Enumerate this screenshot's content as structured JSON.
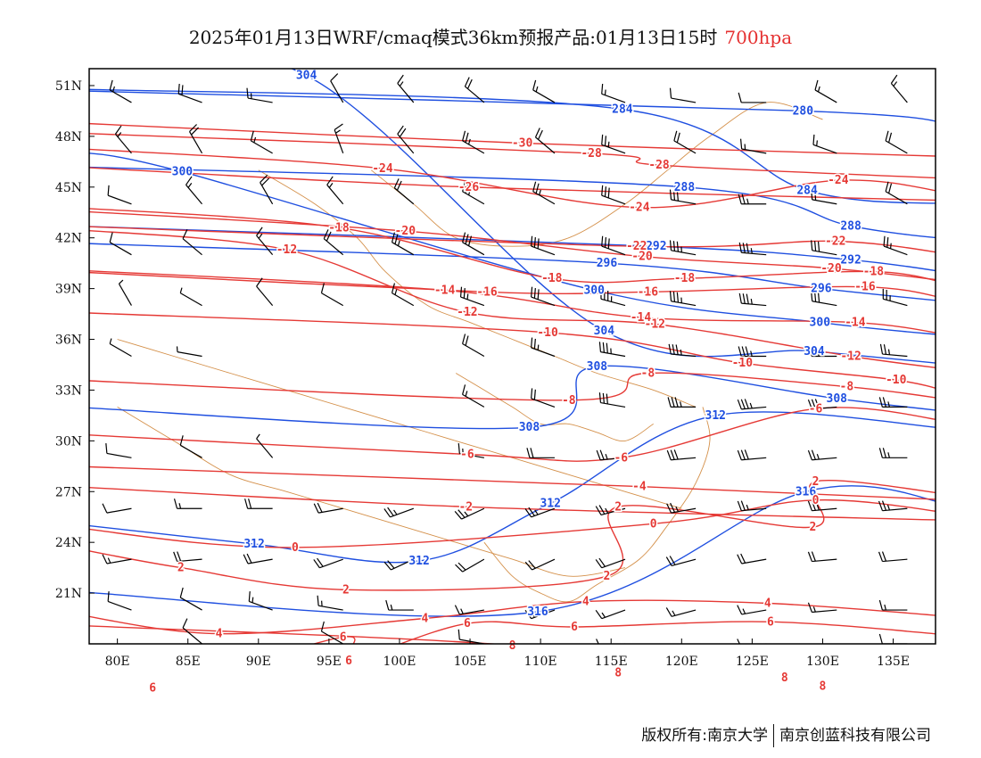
{
  "title": {
    "main": "2025年01月13日WRF/cmaq模式36km预报产品:01月13日15时",
    "level": "700hpa"
  },
  "footer": {
    "copyright": "版权所有:南京大学",
    "company": "南京创蓝科技有限公司"
  },
  "colors": {
    "temperature": "#e53935",
    "geopotential": "#1f4fe0",
    "border": "#d4904a",
    "wind": "#000000",
    "frame": "#000000"
  },
  "axes": {
    "lon_range": [
      78,
      138
    ],
    "lat_range": [
      18,
      52
    ],
    "lon_ticks": [
      80,
      85,
      90,
      95,
      100,
      105,
      110,
      115,
      120,
      125,
      130,
      135
    ],
    "lon_labels": [
      "80E",
      "85E",
      "90E",
      "95E",
      "100E",
      "105E",
      "110E",
      "115E",
      "120E",
      "125E",
      "130E",
      "135E"
    ],
    "lat_ticks": [
      21,
      24,
      27,
      30,
      33,
      36,
      39,
      42,
      45,
      48,
      51
    ],
    "lat_labels": [
      "21N",
      "24N",
      "27N",
      "30N",
      "33N",
      "36N",
      "39N",
      "42N",
      "45N",
      "48N",
      "51N"
    ]
  },
  "temperature_labels": [
    {
      "text": "-30",
      "lon": 108.7,
      "lat": 47.6
    },
    {
      "text": "-28",
      "lon": 113.6,
      "lat": 47.0
    },
    {
      "text": "-28",
      "lon": 118.4,
      "lat": 46.3
    },
    {
      "text": "-24",
      "lon": 98.8,
      "lat": 46.1
    },
    {
      "text": "-24",
      "lon": 117.0,
      "lat": 43.8
    },
    {
      "text": "-24",
      "lon": 131.1,
      "lat": 45.4
    },
    {
      "text": "-26",
      "lon": 104.9,
      "lat": 45.0
    },
    {
      "text": "-18",
      "lon": 95.7,
      "lat": 42.6
    },
    {
      "text": "-20",
      "lon": 100.4,
      "lat": 42.4
    },
    {
      "text": "-22",
      "lon": 116.8,
      "lat": 41.5
    },
    {
      "text": "-22",
      "lon": 130.9,
      "lat": 41.8
    },
    {
      "text": "-20",
      "lon": 117.2,
      "lat": 40.9
    },
    {
      "text": "-20",
      "lon": 130.6,
      "lat": 40.2
    },
    {
      "text": "-12",
      "lon": 92.0,
      "lat": 41.3
    },
    {
      "text": "-18",
      "lon": 110.8,
      "lat": 39.6
    },
    {
      "text": "-18",
      "lon": 120.2,
      "lat": 39.6
    },
    {
      "text": "-18",
      "lon": 133.6,
      "lat": 40.0
    },
    {
      "text": "-16",
      "lon": 133.0,
      "lat": 39.1
    },
    {
      "text": "-14",
      "lon": 103.2,
      "lat": 38.9
    },
    {
      "text": "-16",
      "lon": 106.2,
      "lat": 38.8
    },
    {
      "text": "-16",
      "lon": 117.6,
      "lat": 38.8
    },
    {
      "text": "-12",
      "lon": 104.8,
      "lat": 37.6
    },
    {
      "text": "-14",
      "lon": 117.1,
      "lat": 37.3
    },
    {
      "text": "-12",
      "lon": 118.1,
      "lat": 36.9
    },
    {
      "text": "-14",
      "lon": 132.3,
      "lat": 37.0
    },
    {
      "text": "-12",
      "lon": 132.0,
      "lat": 35.0
    },
    {
      "text": "-10",
      "lon": 110.5,
      "lat": 36.4
    },
    {
      "text": "-10",
      "lon": 124.3,
      "lat": 34.6
    },
    {
      "text": "-10",
      "lon": 135.2,
      "lat": 33.6
    },
    {
      "text": "-8",
      "lon": 117.6,
      "lat": 34.0
    },
    {
      "text": "-8",
      "lon": 112.0,
      "lat": 32.4
    },
    {
      "text": "-8",
      "lon": 131.7,
      "lat": 33.2
    },
    {
      "text": "-6",
      "lon": 129.5,
      "lat": 31.9
    },
    {
      "text": "-6",
      "lon": 115.7,
      "lat": 29.0
    },
    {
      "text": "-6",
      "lon": 104.8,
      "lat": 29.2
    },
    {
      "text": "-4",
      "lon": 117.0,
      "lat": 27.3
    },
    {
      "text": "-2",
      "lon": 104.7,
      "lat": 26.1
    },
    {
      "text": "2",
      "lon": 115.5,
      "lat": 26.1
    },
    {
      "text": "2",
      "lon": 129.5,
      "lat": 27.6
    },
    {
      "text": "0",
      "lon": 118.0,
      "lat": 25.1
    },
    {
      "text": "0",
      "lon": 129.5,
      "lat": 26.5
    },
    {
      "text": "2",
      "lon": 129.3,
      "lat": 24.9
    },
    {
      "text": "0",
      "lon": 92.6,
      "lat": 23.7
    },
    {
      "text": "2",
      "lon": 84.5,
      "lat": 22.5
    },
    {
      "text": "2",
      "lon": 114.7,
      "lat": 22.0
    },
    {
      "text": "2",
      "lon": 96.2,
      "lat": 21.2
    },
    {
      "text": "4",
      "lon": 113.2,
      "lat": 20.5
    },
    {
      "text": "4",
      "lon": 126.1,
      "lat": 20.4
    },
    {
      "text": "4",
      "lon": 101.8,
      "lat": 19.5
    },
    {
      "text": "6",
      "lon": 104.8,
      "lat": 19.2
    },
    {
      "text": "6",
      "lon": 112.4,
      "lat": 19.0
    },
    {
      "text": "6",
      "lon": 126.3,
      "lat": 19.3
    },
    {
      "text": "4",
      "lon": 87.2,
      "lat": 18.6
    },
    {
      "text": "6",
      "lon": 96.0,
      "lat": 18.4
    },
    {
      "text": "8",
      "lon": 108.0,
      "lat": 17.9
    },
    {
      "text": "6",
      "lon": 96.4,
      "lat": 17.0
    },
    {
      "text": "8",
      "lon": 115.5,
      "lat": 16.3
    },
    {
      "text": "8",
      "lon": 127.3,
      "lat": 16.0
    },
    {
      "text": "8",
      "lon": 130.0,
      "lat": 15.5
    },
    {
      "text": "6",
      "lon": 82.5,
      "lat": 15.4
    }
  ],
  "height_labels": [
    {
      "text": "304",
      "lon": 93.4,
      "lat": 51.6
    },
    {
      "text": "284",
      "lon": 115.8,
      "lat": 49.6
    },
    {
      "text": "280",
      "lon": 128.6,
      "lat": 49.5
    },
    {
      "text": "300",
      "lon": 84.6,
      "lat": 45.9
    },
    {
      "text": "288",
      "lon": 120.2,
      "lat": 45.0
    },
    {
      "text": "284",
      "lon": 128.9,
      "lat": 44.8
    },
    {
      "text": "288",
      "lon": 132.0,
      "lat": 42.7
    },
    {
      "text": "292",
      "lon": 118.2,
      "lat": 41.5
    },
    {
      "text": "292",
      "lon": 132.0,
      "lat": 40.7
    },
    {
      "text": "296",
      "lon": 114.7,
      "lat": 40.5
    },
    {
      "text": "296",
      "lon": 129.9,
      "lat": 39.0
    },
    {
      "text": "300",
      "lon": 113.8,
      "lat": 38.9
    },
    {
      "text": "300",
      "lon": 129.8,
      "lat": 37.0
    },
    {
      "text": "304",
      "lon": 114.5,
      "lat": 36.5
    },
    {
      "text": "304",
      "lon": 129.4,
      "lat": 35.3
    },
    {
      "text": "308",
      "lon": 114.0,
      "lat": 34.4
    },
    {
      "text": "308",
      "lon": 131.0,
      "lat": 32.5
    },
    {
      "text": "308",
      "lon": 109.2,
      "lat": 30.8
    },
    {
      "text": "312",
      "lon": 122.4,
      "lat": 31.5
    },
    {
      "text": "316",
      "lon": 128.8,
      "lat": 27.0
    },
    {
      "text": "312",
      "lon": 110.7,
      "lat": 26.3
    },
    {
      "text": "312",
      "lon": 89.7,
      "lat": 23.9
    },
    {
      "text": "312",
      "lon": 101.4,
      "lat": 22.9
    },
    {
      "text": "316",
      "lon": 109.8,
      "lat": 19.9
    }
  ],
  "wind_barbs": [
    {
      "lon": 81,
      "lat": 50,
      "dir": 300,
      "spd": 15
    },
    {
      "lon": 86,
      "lat": 50,
      "dir": 290,
      "spd": 20
    },
    {
      "lon": 91,
      "lat": 50,
      "dir": 280,
      "spd": 15
    },
    {
      "lon": 96,
      "lat": 50,
      "dir": 330,
      "spd": 10
    },
    {
      "lon": 101,
      "lat": 50,
      "dir": 320,
      "spd": 15
    },
    {
      "lon": 106,
      "lat": 50,
      "dir": 310,
      "spd": 20
    },
    {
      "lon": 111,
      "lat": 50,
      "dir": 300,
      "spd": 15
    },
    {
      "lon": 116,
      "lat": 50,
      "dir": 290,
      "spd": 15
    },
    {
      "lon": 121,
      "lat": 50,
      "dir": 280,
      "spd": 10
    },
    {
      "lon": 126,
      "lat": 50,
      "dir": 270,
      "spd": 10
    },
    {
      "lon": 131,
      "lat": 50,
      "dir": 300,
      "spd": 15
    },
    {
      "lon": 136,
      "lat": 50,
      "dir": 320,
      "spd": 15
    },
    {
      "lon": 81,
      "lat": 47,
      "dir": 320,
      "spd": 15
    },
    {
      "lon": 86,
      "lat": 47,
      "dir": 330,
      "spd": 20
    },
    {
      "lon": 91,
      "lat": 47,
      "dir": 300,
      "spd": 15
    },
    {
      "lon": 96,
      "lat": 47,
      "dir": 340,
      "spd": 15
    },
    {
      "lon": 101,
      "lat": 47,
      "dir": 320,
      "spd": 20
    },
    {
      "lon": 106,
      "lat": 47,
      "dir": 300,
      "spd": 25
    },
    {
      "lon": 111,
      "lat": 47,
      "dir": 310,
      "spd": 20
    },
    {
      "lon": 116,
      "lat": 47,
      "dir": 290,
      "spd": 25
    },
    {
      "lon": 121,
      "lat": 47,
      "dir": 300,
      "spd": 20
    },
    {
      "lon": 126,
      "lat": 47,
      "dir": 280,
      "spd": 15
    },
    {
      "lon": 131,
      "lat": 47,
      "dir": 290,
      "spd": 15
    },
    {
      "lon": 136,
      "lat": 47,
      "dir": 300,
      "spd": 20
    },
    {
      "lon": 81,
      "lat": 44,
      "dir": 290,
      "spd": 10
    },
    {
      "lon": 86,
      "lat": 44,
      "dir": 320,
      "spd": 15
    },
    {
      "lon": 91,
      "lat": 44,
      "dir": 330,
      "spd": 20
    },
    {
      "lon": 96,
      "lat": 44,
      "dir": 320,
      "spd": 15
    },
    {
      "lon": 101,
      "lat": 44,
      "dir": 310,
      "spd": 20
    },
    {
      "lon": 106,
      "lat": 44,
      "dir": 300,
      "spd": 25
    },
    {
      "lon": 111,
      "lat": 44,
      "dir": 300,
      "spd": 25
    },
    {
      "lon": 116,
      "lat": 44,
      "dir": 290,
      "spd": 30
    },
    {
      "lon": 121,
      "lat": 44,
      "dir": 280,
      "spd": 30
    },
    {
      "lon": 126,
      "lat": 44,
      "dir": 270,
      "spd": 25
    },
    {
      "lon": 131,
      "lat": 44,
      "dir": 280,
      "spd": 20
    },
    {
      "lon": 136,
      "lat": 44,
      "dir": 300,
      "spd": 20
    },
    {
      "lon": 81,
      "lat": 41,
      "dir": 300,
      "spd": 10
    },
    {
      "lon": 86,
      "lat": 41,
      "dir": 310,
      "spd": 10
    },
    {
      "lon": 91,
      "lat": 41,
      "dir": 320,
      "spd": 15
    },
    {
      "lon": 96,
      "lat": 41,
      "dir": 310,
      "spd": 20
    },
    {
      "lon": 101,
      "lat": 41,
      "dir": 300,
      "spd": 25
    },
    {
      "lon": 106,
      "lat": 41,
      "dir": 300,
      "spd": 30
    },
    {
      "lon": 111,
      "lat": 41,
      "dir": 290,
      "spd": 30
    },
    {
      "lon": 116,
      "lat": 41,
      "dir": 290,
      "spd": 30
    },
    {
      "lon": 121,
      "lat": 41,
      "dir": 280,
      "spd": 35
    },
    {
      "lon": 126,
      "lat": 41,
      "dir": 275,
      "spd": 35
    },
    {
      "lon": 131,
      "lat": 41,
      "dir": 280,
      "spd": 30
    },
    {
      "lon": 136,
      "lat": 41,
      "dir": 290,
      "spd": 25
    },
    {
      "lon": 81,
      "lat": 38,
      "dir": 330,
      "spd": 5
    },
    {
      "lon": 86,
      "lat": 38,
      "dir": 300,
      "spd": 5
    },
    {
      "lon": 91,
      "lat": 38,
      "dir": 320,
      "spd": 10
    },
    {
      "lon": 96,
      "lat": 38,
      "dir": 300,
      "spd": 10
    },
    {
      "lon": 101,
      "lat": 38,
      "dir": 300,
      "spd": 15
    },
    {
      "lon": 106,
      "lat": 38,
      "dir": 290,
      "spd": 25
    },
    {
      "lon": 111,
      "lat": 38,
      "dir": 290,
      "spd": 30
    },
    {
      "lon": 116,
      "lat": 38,
      "dir": 285,
      "spd": 35
    },
    {
      "lon": 121,
      "lat": 38,
      "dir": 280,
      "spd": 35
    },
    {
      "lon": 126,
      "lat": 38,
      "dir": 275,
      "spd": 35
    },
    {
      "lon": 131,
      "lat": 38,
      "dir": 280,
      "spd": 30
    },
    {
      "lon": 136,
      "lat": 38,
      "dir": 285,
      "spd": 25
    },
    {
      "lon": 81,
      "lat": 35,
      "dir": 300,
      "spd": 5
    },
    {
      "lon": 86,
      "lat": 35,
      "dir": 280,
      "spd": 5
    },
    {
      "lon": 106,
      "lat": 35,
      "dir": 300,
      "spd": 20
    },
    {
      "lon": 111,
      "lat": 35,
      "dir": 290,
      "spd": 25
    },
    {
      "lon": 116,
      "lat": 35,
      "dir": 280,
      "spd": 35
    },
    {
      "lon": 121,
      "lat": 35,
      "dir": 275,
      "spd": 35
    },
    {
      "lon": 126,
      "lat": 35,
      "dir": 270,
      "spd": 35
    },
    {
      "lon": 131,
      "lat": 35,
      "dir": 270,
      "spd": 30
    },
    {
      "lon": 136,
      "lat": 35,
      "dir": 275,
      "spd": 25
    },
    {
      "lon": 106,
      "lat": 32,
      "dir": 300,
      "spd": 15
    },
    {
      "lon": 111,
      "lat": 32,
      "dir": 290,
      "spd": 20
    },
    {
      "lon": 116,
      "lat": 32,
      "dir": 280,
      "spd": 30
    },
    {
      "lon": 121,
      "lat": 32,
      "dir": 270,
      "spd": 35
    },
    {
      "lon": 126,
      "lat": 32,
      "dir": 265,
      "spd": 35
    },
    {
      "lon": 131,
      "lat": 32,
      "dir": 265,
      "spd": 30
    },
    {
      "lon": 136,
      "lat": 32,
      "dir": 270,
      "spd": 25
    },
    {
      "lon": 81,
      "lat": 29,
      "dir": 280,
      "spd": 10
    },
    {
      "lon": 86,
      "lat": 29,
      "dir": 300,
      "spd": 10
    },
    {
      "lon": 91,
      "lat": 29,
      "dir": 320,
      "spd": 5
    },
    {
      "lon": 106,
      "lat": 29,
      "dir": 280,
      "spd": 15
    },
    {
      "lon": 111,
      "lat": 29,
      "dir": 270,
      "spd": 20
    },
    {
      "lon": 116,
      "lat": 29,
      "dir": 265,
      "spd": 25
    },
    {
      "lon": 121,
      "lat": 29,
      "dir": 265,
      "spd": 30
    },
    {
      "lon": 126,
      "lat": 29,
      "dir": 265,
      "spd": 30
    },
    {
      "lon": 131,
      "lat": 29,
      "dir": 265,
      "spd": 25
    },
    {
      "lon": 136,
      "lat": 29,
      "dir": 270,
      "spd": 25
    },
    {
      "lon": 81,
      "lat": 26,
      "dir": 260,
      "spd": 10
    },
    {
      "lon": 86,
      "lat": 26,
      "dir": 270,
      "spd": 15
    },
    {
      "lon": 91,
      "lat": 26,
      "dir": 270,
      "spd": 20
    },
    {
      "lon": 96,
      "lat": 26,
      "dir": 260,
      "spd": 20
    },
    {
      "lon": 101,
      "lat": 26,
      "dir": 250,
      "spd": 25
    },
    {
      "lon": 106,
      "lat": 26,
      "dir": 245,
      "spd": 25
    },
    {
      "lon": 111,
      "lat": 26,
      "dir": 250,
      "spd": 25
    },
    {
      "lon": 116,
      "lat": 26,
      "dir": 255,
      "spd": 25
    },
    {
      "lon": 121,
      "lat": 26,
      "dir": 260,
      "spd": 25
    },
    {
      "lon": 126,
      "lat": 26,
      "dir": 265,
      "spd": 25
    },
    {
      "lon": 131,
      "lat": 26,
      "dir": 265,
      "spd": 25
    },
    {
      "lon": 136,
      "lat": 26,
      "dir": 265,
      "spd": 25
    },
    {
      "lon": 81,
      "lat": 23,
      "dir": 260,
      "spd": 15
    },
    {
      "lon": 86,
      "lat": 23,
      "dir": 265,
      "spd": 20
    },
    {
      "lon": 91,
      "lat": 23,
      "dir": 260,
      "spd": 20
    },
    {
      "lon": 96,
      "lat": 23,
      "dir": 250,
      "spd": 20
    },
    {
      "lon": 101,
      "lat": 23,
      "dir": 245,
      "spd": 20
    },
    {
      "lon": 106,
      "lat": 23,
      "dir": 240,
      "spd": 20
    },
    {
      "lon": 111,
      "lat": 23,
      "dir": 245,
      "spd": 20
    },
    {
      "lon": 116,
      "lat": 23,
      "dir": 250,
      "spd": 20
    },
    {
      "lon": 121,
      "lat": 23,
      "dir": 255,
      "spd": 20
    },
    {
      "lon": 126,
      "lat": 23,
      "dir": 260,
      "spd": 20
    },
    {
      "lon": 131,
      "lat": 23,
      "dir": 265,
      "spd": 20
    },
    {
      "lon": 136,
      "lat": 23,
      "dir": 265,
      "spd": 20
    },
    {
      "lon": 81,
      "lat": 20,
      "dir": 290,
      "spd": 10
    },
    {
      "lon": 86,
      "lat": 20,
      "dir": 300,
      "spd": 10
    },
    {
      "lon": 91,
      "lat": 20,
      "dir": 290,
      "spd": 15
    },
    {
      "lon": 96,
      "lat": 20,
      "dir": 280,
      "spd": 15
    },
    {
      "lon": 101,
      "lat": 20,
      "dir": 270,
      "spd": 15
    },
    {
      "lon": 106,
      "lat": 20,
      "dir": 260,
      "spd": 15
    },
    {
      "lon": 111,
      "lat": 20,
      "dir": 250,
      "spd": 15
    },
    {
      "lon": 116,
      "lat": 20,
      "dir": 250,
      "spd": 15
    },
    {
      "lon": 121,
      "lat": 20,
      "dir": 255,
      "spd": 15
    },
    {
      "lon": 126,
      "lat": 20,
      "dir": 260,
      "spd": 15
    },
    {
      "lon": 131,
      "lat": 20,
      "dir": 265,
      "spd": 15
    },
    {
      "lon": 136,
      "lat": 20,
      "dir": 270,
      "spd": 15
    },
    {
      "lon": 86,
      "lat": 18,
      "dir": 310,
      "spd": 10
    },
    {
      "lon": 96,
      "lat": 18,
      "dir": 300,
      "spd": 10
    },
    {
      "lon": 106,
      "lat": 18,
      "dir": 280,
      "spd": 10
    },
    {
      "lon": 116,
      "lat": 18,
      "dir": 260,
      "spd": 10
    },
    {
      "lon": 126,
      "lat": 18,
      "dir": 260,
      "spd": 10
    },
    {
      "lon": 136,
      "lat": 18,
      "dir": 270,
      "spd": 10
    }
  ]
}
